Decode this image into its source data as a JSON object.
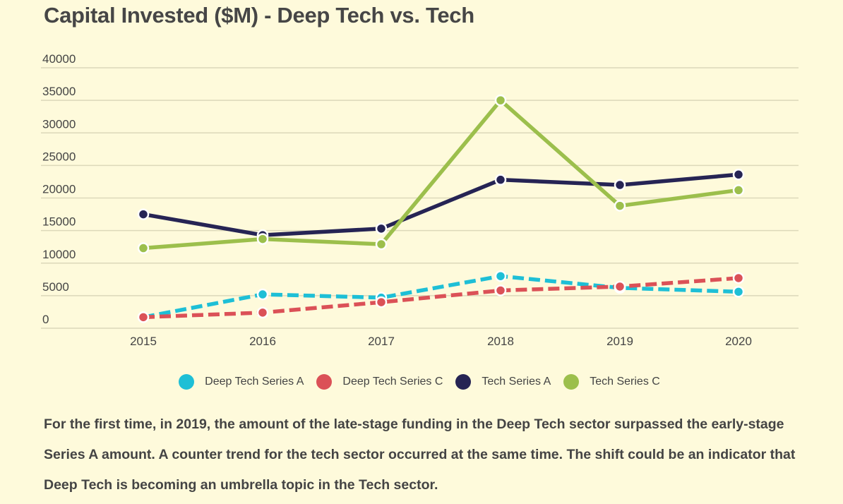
{
  "chart_data": {
    "type": "line",
    "title": "Capital Invested ($M) - Deep Tech vs. Tech",
    "xlabel": "",
    "ylabel": "",
    "categories": [
      "2015",
      "2016",
      "2017",
      "2018",
      "2019",
      "2020"
    ],
    "yticks": [
      0,
      5000,
      10000,
      15000,
      20000,
      25000,
      30000,
      35000,
      40000
    ],
    "ylim": [
      0,
      40000
    ],
    "grid": true,
    "legend_position": "bottom-center",
    "series": [
      {
        "name": "Deep Tech Series A",
        "color": "#1EBFD6",
        "style": "dashed",
        "values": [
          1700,
          5200,
          4700,
          8000,
          6200,
          5600
        ]
      },
      {
        "name": "Deep Tech Series C",
        "color": "#DB5157",
        "style": "dashed",
        "values": [
          1700,
          2400,
          4000,
          5800,
          6400,
          7700
        ]
      },
      {
        "name": "Tech Series A",
        "color": "#262454",
        "style": "solid",
        "values": [
          17500,
          14300,
          15300,
          22800,
          22000,
          23600
        ]
      },
      {
        "name": "Tech Series C",
        "color": "#9CBF4C",
        "style": "solid",
        "values": [
          12300,
          13700,
          12900,
          35000,
          18800,
          21200
        ]
      }
    ]
  },
  "caption": "For the first time, in 2019, the amount of the late-stage funding in the Deep Tech sector surpassed the early-stage Series A amount. A counter trend for the tech sector occurred at the same time. The shift could be an indicator that Deep Tech is becoming an umbrella topic in the Tech sector."
}
